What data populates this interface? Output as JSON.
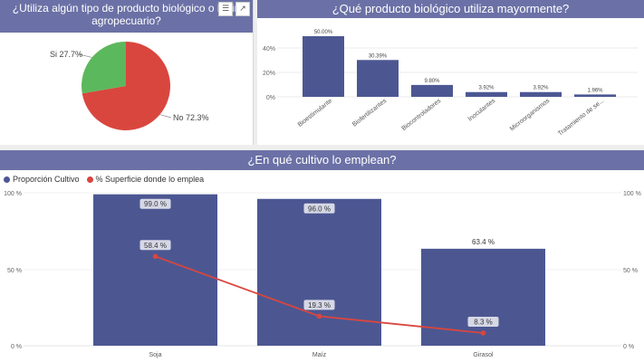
{
  "colors": {
    "primary": "#4c5792",
    "pie_si": "#5cb85c",
    "pie_no": "#d9463e",
    "line": "#d9463e",
    "header": "#6b71a6"
  },
  "icons": {
    "filter": "filter-icon",
    "focus": "focus-mode-icon"
  },
  "panel1": {
    "title_line1": "¿Utiliza algún tipo de producto biológico o bioin",
    "title_line2": "agropecuario?"
  },
  "panel2": {
    "title": "¿Qué producto biológico utiliza mayormente?"
  },
  "panel3": {
    "title": "¿En qué cultivo lo emplean?"
  },
  "chart_data": [
    {
      "type": "pie",
      "title": "¿Utiliza algún tipo de producto biológico o bioin agropecuario?",
      "slices": [
        {
          "label": "Si",
          "value": 27.7,
          "display": "Si 27.7%"
        },
        {
          "label": "No",
          "value": 72.3,
          "display": "No 72.3%"
        }
      ]
    },
    {
      "type": "bar",
      "title": "¿Qué producto biológico utiliza mayormente?",
      "categories": [
        "Bioestimulante",
        "Biofertilizantes",
        "Biocontroladores",
        "Inoculantes",
        "Microorganismos",
        "Tratamiento de se..."
      ],
      "values": [
        50.0,
        30.39,
        9.8,
        3.92,
        3.92,
        1.96
      ],
      "value_labels": [
        "50.00%",
        "30.39%",
        "9.80%",
        "3.92%",
        "3.92%",
        "1.96%"
      ],
      "ylim": [
        0,
        50
      ],
      "yticks": [
        0,
        20,
        40
      ],
      "ytick_labels": [
        "0%",
        "20%",
        "40%"
      ]
    },
    {
      "type": "bar",
      "title": "¿En qué cultivo lo emplean?",
      "categories": [
        "Soja",
        "Maíz",
        "Girasol"
      ],
      "series": [
        {
          "name": "Proporción Cultivo",
          "kind": "bar",
          "values": [
            99.0,
            96.0,
            63.4
          ],
          "labels": [
            "99.0 %",
            "96.0 %",
            "63.4 %"
          ]
        },
        {
          "name": "% Superficie donde lo emplea",
          "kind": "line",
          "values": [
            58.4,
            19.3,
            8.3
          ],
          "labels": [
            "58.4 %",
            "19.3 %",
            "8.3 %"
          ]
        }
      ],
      "ylim": [
        0,
        100
      ],
      "yticks": [
        0,
        50,
        100
      ],
      "ytick_labels": [
        "0 %",
        "50 %",
        "100 %"
      ],
      "legend": [
        "Proporción Cultivo",
        "% Superficie donde lo emplea"
      ]
    }
  ]
}
